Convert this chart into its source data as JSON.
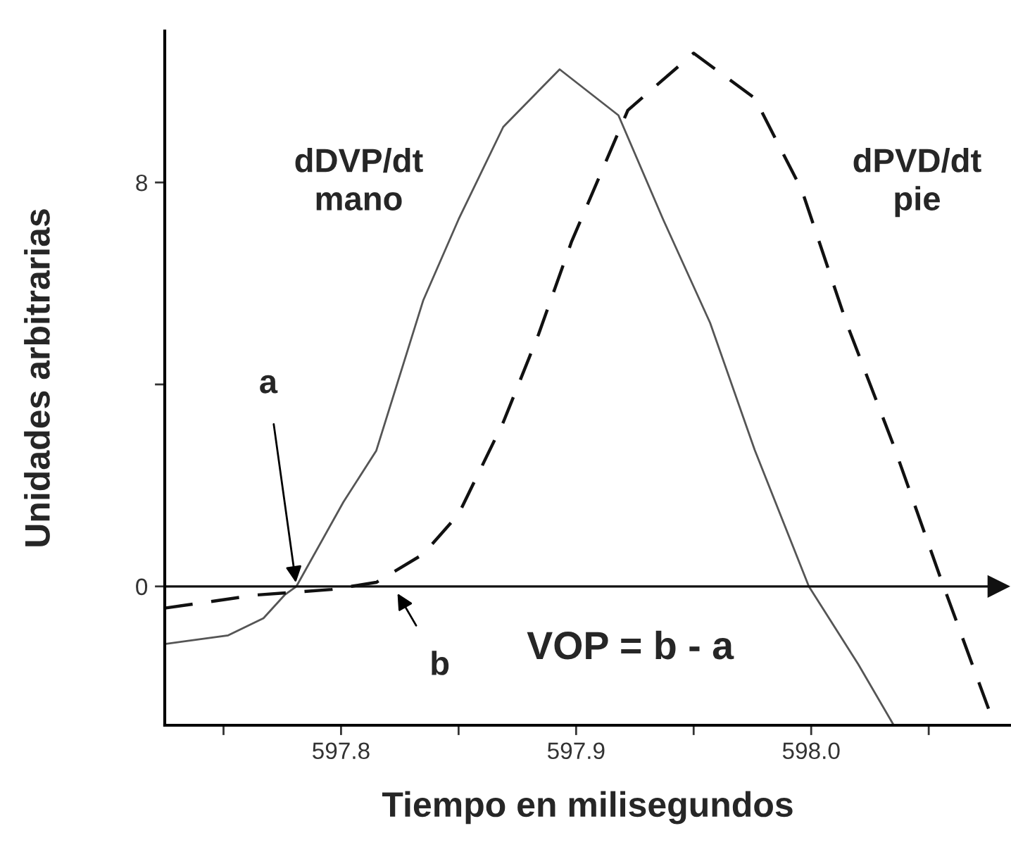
{
  "chart_data": {
    "type": "line",
    "xlabel": "Tiempo en milisegundos",
    "ylabel": "Unidades arbitrarias",
    "xlim": [
      597.725,
      598.085
    ],
    "ylim": [
      -2.75,
      11
    ],
    "xticks": [
      {
        "value": 597.75,
        "label": null
      },
      597.8,
      {
        "value": 597.85,
        "label": null
      },
      597.9,
      {
        "value": 597.95,
        "label": null
      },
      {
        "value": 598.0,
        "label": "598.0"
      },
      {
        "value": 598.05,
        "label": null
      }
    ],
    "yticks": [
      0,
      {
        "value": 4,
        "label": null
      },
      8
    ],
    "grid": false,
    "legend": false,
    "marker": "none",
    "series": [
      {
        "name": "dDVP/dt\nmano",
        "color": "#555555",
        "line_style": "solid",
        "x": [
          597.725,
          597.752,
          597.767,
          597.776,
          597.781,
          597.801,
          597.815,
          597.835,
          597.85,
          597.869,
          597.893,
          597.918,
          597.937,
          597.957,
          597.976,
          597.999,
          598.02,
          598.035
        ],
        "values": [
          -1.14,
          -0.97,
          -0.63,
          -0.17,
          0,
          1.67,
          2.69,
          5.67,
          7.27,
          9.1,
          10.24,
          9.33,
          7.27,
          5.22,
          2.7,
          0.0,
          -1.54,
          -2.74
        ]
      },
      {
        "name": "dPVD/dt\npie",
        "color": "#111111",
        "line_style": "dashed",
        "x": [
          597.725,
          597.764,
          597.796,
          597.815,
          597.835,
          597.85,
          597.869,
          597.884,
          597.898,
          597.922,
          597.95,
          597.976,
          597.996,
          598.015,
          598.035,
          598.055,
          598.077
        ],
        "values": [
          -0.43,
          -0.17,
          -0.06,
          0.08,
          0.64,
          1.43,
          3.25,
          4.99,
          6.82,
          9.43,
          10.56,
          9.67,
          7.85,
          5.22,
          2.8,
          0.17,
          -2.62
        ]
      }
    ],
    "ref_lines": [
      {
        "axis": "y",
        "value": 0,
        "color": "#111111"
      }
    ],
    "annotations": [
      {
        "text": "a",
        "x": 597.781,
        "y": 0
      },
      "b",
      "VOP = b - a"
    ]
  }
}
